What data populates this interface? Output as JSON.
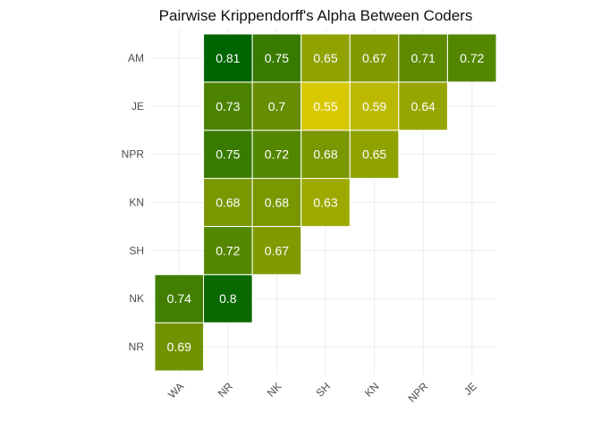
{
  "chart_data": {
    "type": "heatmap",
    "title": "Pairwise Krippendorff's Alpha Between Coders",
    "x_categories": [
      "WA",
      "NR",
      "NK",
      "SH",
      "KN",
      "NPR",
      "JE"
    ],
    "y_categories": [
      "NR",
      "NK",
      "SH",
      "KN",
      "NPR",
      "JE",
      "AM"
    ],
    "cells": [
      {
        "x": "WA",
        "y": "NR",
        "value": 0.69,
        "label": "0.69"
      },
      {
        "x": "WA",
        "y": "NK",
        "value": 0.74,
        "label": "0.74"
      },
      {
        "x": "NR",
        "y": "NK",
        "value": 0.8,
        "label": "0.8"
      },
      {
        "x": "NR",
        "y": "SH",
        "value": 0.72,
        "label": "0.72"
      },
      {
        "x": "NK",
        "y": "SH",
        "value": 0.67,
        "label": "0.67"
      },
      {
        "x": "NR",
        "y": "KN",
        "value": 0.68,
        "label": "0.68"
      },
      {
        "x": "NK",
        "y": "KN",
        "value": 0.68,
        "label": "0.68"
      },
      {
        "x": "SH",
        "y": "KN",
        "value": 0.63,
        "label": "0.63"
      },
      {
        "x": "NR",
        "y": "NPR",
        "value": 0.75,
        "label": "0.75"
      },
      {
        "x": "NK",
        "y": "NPR",
        "value": 0.72,
        "label": "0.72"
      },
      {
        "x": "SH",
        "y": "NPR",
        "value": 0.68,
        "label": "0.68"
      },
      {
        "x": "KN",
        "y": "NPR",
        "value": 0.65,
        "label": "0.65"
      },
      {
        "x": "NR",
        "y": "JE",
        "value": 0.73,
        "label": "0.73"
      },
      {
        "x": "NK",
        "y": "JE",
        "value": 0.7,
        "label": "0.7"
      },
      {
        "x": "SH",
        "y": "JE",
        "value": 0.55,
        "label": "0.55"
      },
      {
        "x": "KN",
        "y": "JE",
        "value": 0.59,
        "label": "0.59"
      },
      {
        "x": "NPR",
        "y": "JE",
        "value": 0.64,
        "label": "0.64"
      },
      {
        "x": "NR",
        "y": "AM",
        "value": 0.81,
        "label": "0.81"
      },
      {
        "x": "NK",
        "y": "AM",
        "value": 0.75,
        "label": "0.75"
      },
      {
        "x": "SH",
        "y": "AM",
        "value": 0.65,
        "label": "0.65"
      },
      {
        "x": "KN",
        "y": "AM",
        "value": 0.67,
        "label": "0.67"
      },
      {
        "x": "NPR",
        "y": "AM",
        "value": 0.71,
        "label": "0.71"
      },
      {
        "x": "JE",
        "y": "AM",
        "value": 0.72,
        "label": "0.72"
      }
    ],
    "color_scale": {
      "low": 0.55,
      "high": 0.81,
      "low_color": "#d8c800",
      "high_color": "#006400"
    },
    "grid": true,
    "legend": "none"
  }
}
